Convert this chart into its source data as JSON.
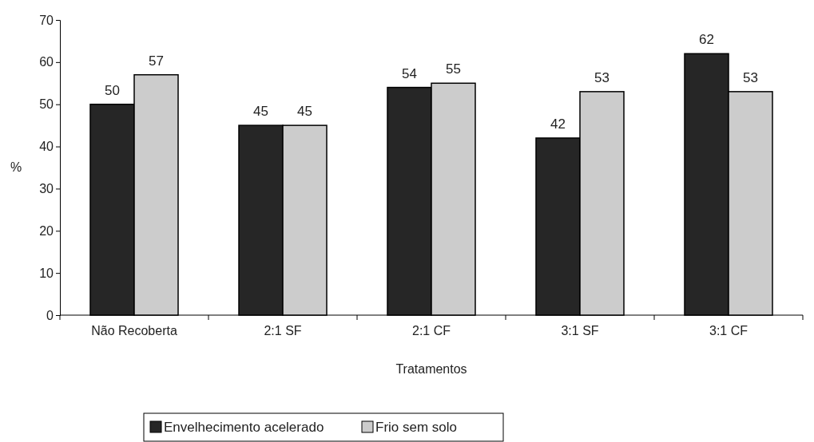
{
  "chart_data": {
    "type": "bar",
    "xlabel": "Tratamentos",
    "ylabel": "%",
    "categories": [
      "Não Recoberta",
      "2:1 SF",
      "2:1 CF",
      "3:1 SF",
      "3:1 CF"
    ],
    "series": [
      {
        "name": "Envelhecimento acelerado",
        "color": "#262626",
        "values": [
          50,
          45,
          54,
          42,
          62
        ]
      },
      {
        "name": "Frio sem solo",
        "color": "#cccccc",
        "values": [
          57,
          45,
          55,
          53,
          53
        ]
      }
    ],
    "ylim": [
      0,
      70
    ],
    "yticks": [
      0,
      10,
      20,
      30,
      40,
      50,
      60,
      70
    ],
    "data_labels": true,
    "grid": false,
    "legend": "bottom"
  }
}
